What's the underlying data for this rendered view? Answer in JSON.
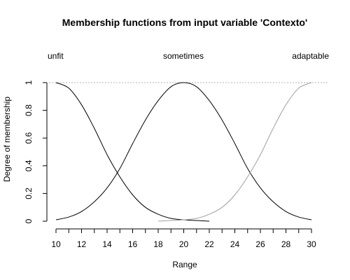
{
  "chart_data": {
    "type": "line",
    "title": "Membership functions from input variable 'Contexto'",
    "xlabel": "Range",
    "ylabel": "Degree of membership",
    "xlim": [
      10,
      30
    ],
    "ylim": [
      0,
      1
    ],
    "x_ticks": [
      10,
      12,
      14,
      16,
      18,
      20,
      22,
      24,
      26,
      28,
      30
    ],
    "y_ticks": [
      0,
      0.2,
      0.4,
      0.6,
      0.8,
      1
    ],
    "y_tick_labels": [
      "0",
      "0.2",
      "0.4",
      "0.6",
      "0.8",
      "1"
    ],
    "reference_line_y": 1,
    "series": [
      {
        "name": "unfit",
        "color": "#000000",
        "x": [
          10,
          11,
          12,
          13,
          14,
          15,
          16,
          17,
          18,
          19,
          20,
          21,
          22
        ],
        "y": [
          1.0,
          0.96,
          0.84,
          0.67,
          0.48,
          0.32,
          0.19,
          0.1,
          0.05,
          0.02,
          0.01,
          0.005,
          0.0
        ]
      },
      {
        "name": "sometimes",
        "color": "#000000",
        "x": [
          10,
          11,
          12,
          13,
          14,
          15,
          16,
          17,
          18,
          19,
          20,
          21,
          22,
          23,
          24,
          25,
          26,
          27,
          28,
          29,
          30
        ],
        "y": [
          0.01,
          0.03,
          0.07,
          0.14,
          0.24,
          0.38,
          0.56,
          0.73,
          0.87,
          0.97,
          1.0,
          0.97,
          0.87,
          0.73,
          0.56,
          0.38,
          0.24,
          0.14,
          0.07,
          0.03,
          0.01
        ]
      },
      {
        "name": "adaptable",
        "color": "#a0a0a0",
        "x": [
          18,
          19,
          20,
          21,
          22,
          23,
          24,
          25,
          26,
          27,
          28,
          29,
          30
        ],
        "y": [
          0.0,
          0.005,
          0.01,
          0.02,
          0.05,
          0.1,
          0.19,
          0.32,
          0.48,
          0.67,
          0.84,
          0.96,
          1.0
        ]
      }
    ]
  }
}
